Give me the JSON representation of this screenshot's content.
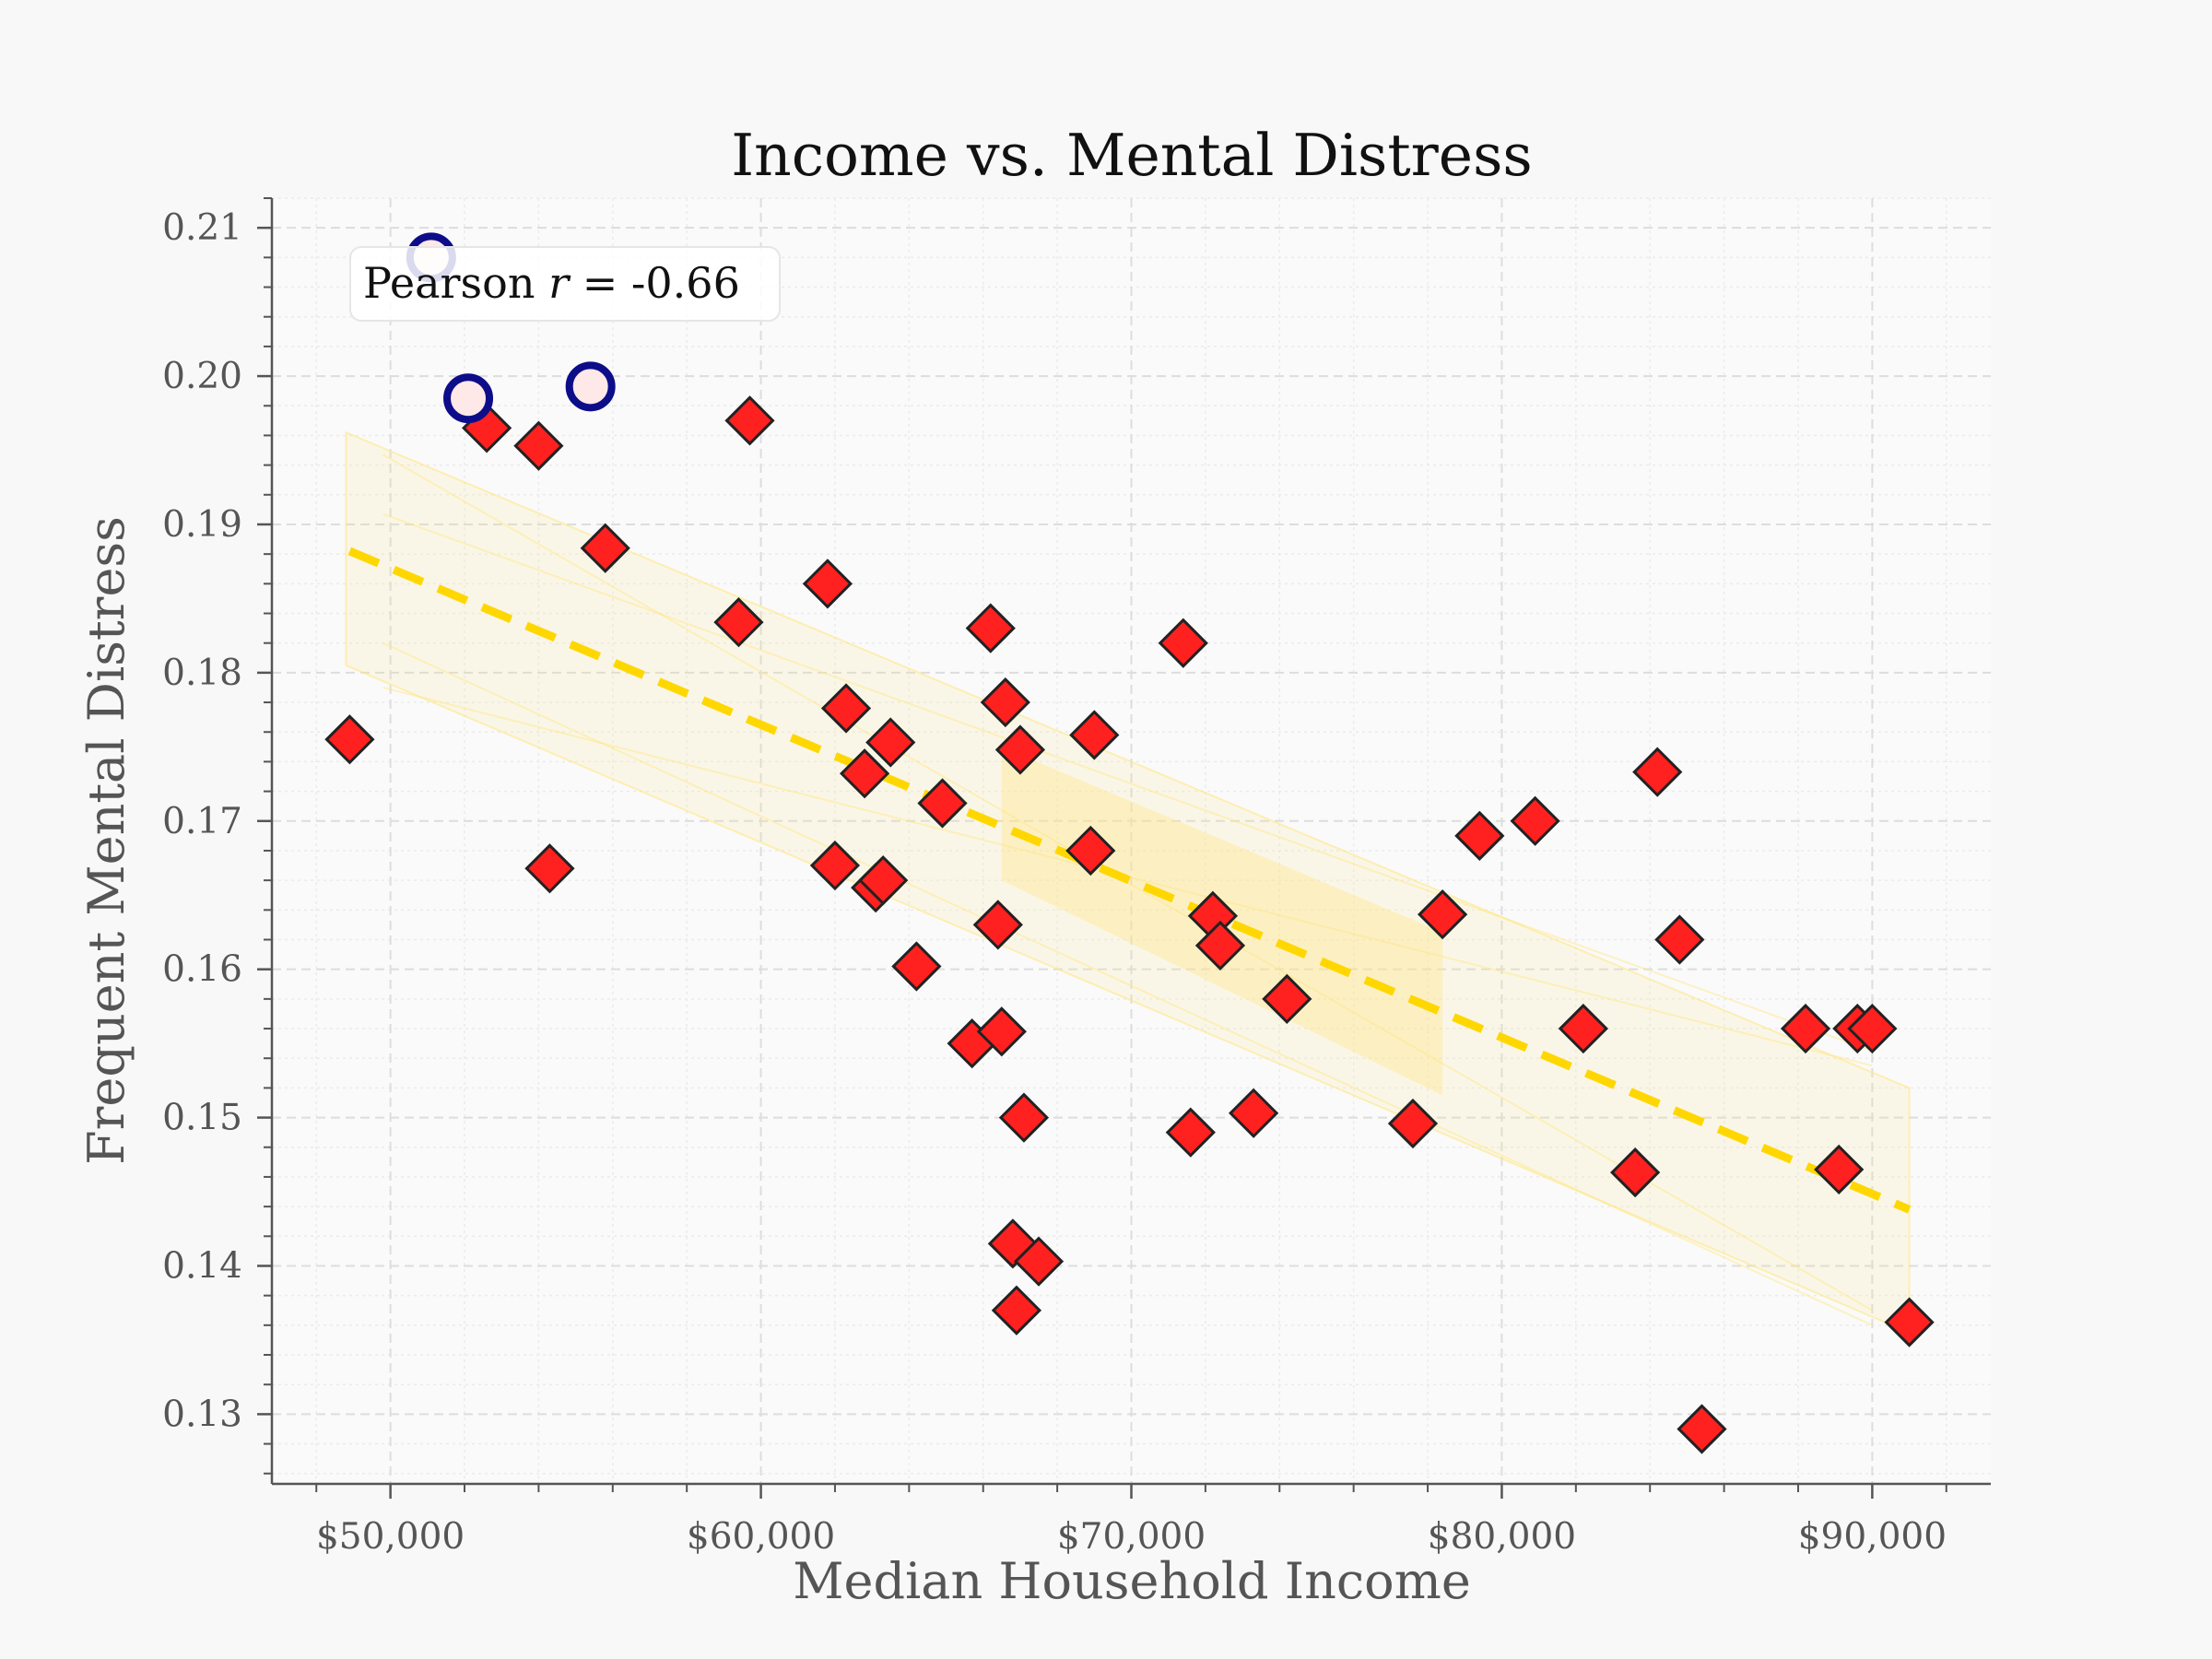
{
  "chart_data": {
    "type": "scatter",
    "title": "Income vs. Mental Distress",
    "xlabel": "Median Household Income",
    "ylabel": "Frequent Mental Distress",
    "xlim": [
      46800,
      93200
    ],
    "ylim": [
      0.1253,
      0.212
    ],
    "x_ticks": [
      50000,
      60000,
      70000,
      80000,
      90000
    ],
    "x_tick_labels": [
      "$50,000",
      "$60,000",
      "$70,000",
      "$80,000",
      "$90,000"
    ],
    "y_ticks": [
      0.13,
      0.14,
      0.15,
      0.16,
      0.17,
      0.18,
      0.19,
      0.2,
      0.21
    ],
    "y_tick_labels": [
      "0.13",
      "0.14",
      "0.15",
      "0.16",
      "0.17",
      "0.18",
      "0.19",
      "0.20",
      "0.21"
    ],
    "grid": true,
    "annotation": {
      "prefix": "Pearson ",
      "variable": "r",
      "suffix": " = -0.66"
    },
    "trend_line": {
      "x": [
        48900,
        91000
      ],
      "y": [
        0.1882,
        0.1438
      ],
      "color": "#ffd700",
      "style": "dashed"
    },
    "confidence_band": {
      "color": "#ffe680",
      "outer": {
        "x": [
          48800,
          91000
        ],
        "upper": [
          0.1962,
          0.152
        ],
        "lower": [
          0.1805,
          0.1355
        ]
      },
      "core": {
        "x": [
          66500,
          78400
        ],
        "upper": [
          0.175,
          0.1625
        ],
        "lower": [
          0.166,
          0.1515
        ]
      }
    },
    "series": [
      {
        "marker": "diamond",
        "color": "#ff2020",
        "edge_color": "#222222",
        "points": [
          [
            48900,
            0.1755
          ],
          [
            52600,
            0.1965
          ],
          [
            54000,
            0.1953
          ],
          [
            54300,
            0.1668
          ],
          [
            55800,
            0.1884
          ],
          [
            59400,
            0.1834
          ],
          [
            59700,
            0.197
          ],
          [
            61800,
            0.186
          ],
          [
            62000,
            0.167
          ],
          [
            62300,
            0.1776
          ],
          [
            62800,
            0.1732
          ],
          [
            63100,
            0.1655
          ],
          [
            63300,
            0.166
          ],
          [
            63500,
            0.1753
          ],
          [
            64200,
            0.1602
          ],
          [
            64900,
            0.1712
          ],
          [
            65700,
            0.155
          ],
          [
            66200,
            0.183
          ],
          [
            66400,
            0.163
          ],
          [
            66500,
            0.1558
          ],
          [
            66600,
            0.178
          ],
          [
            66800,
            0.1415
          ],
          [
            66900,
            0.137
          ],
          [
            67000,
            0.1748
          ],
          [
            67100,
            0.15
          ],
          [
            67500,
            0.1403
          ],
          [
            68900,
            0.168
          ],
          [
            69000,
            0.1758
          ],
          [
            71400,
            0.182
          ],
          [
            71600,
            0.149
          ],
          [
            72200,
            0.1636
          ],
          [
            72400,
            0.1616
          ],
          [
            73300,
            0.1503
          ],
          [
            74200,
            0.158
          ],
          [
            77600,
            0.1496
          ],
          [
            78400,
            0.1637
          ],
          [
            79400,
            0.169
          ],
          [
            80900,
            0.17
          ],
          [
            82200,
            0.156
          ],
          [
            83600,
            0.1463
          ],
          [
            84200,
            0.1733
          ],
          [
            84800,
            0.162
          ],
          [
            88200,
            0.156
          ],
          [
            89100,
            0.1465
          ],
          [
            89600,
            0.156
          ],
          [
            90000,
            0.156
          ],
          [
            91000,
            0.1362
          ],
          [
            85400,
            0.129
          ]
        ]
      },
      {
        "marker": "circle",
        "color": "#ffe8e8",
        "edge_color": "#0d0d8a",
        "points": [
          [
            51100,
            0.208
          ],
          [
            52100,
            0.1985
          ],
          [
            55400,
            0.1993
          ]
        ]
      }
    ]
  }
}
